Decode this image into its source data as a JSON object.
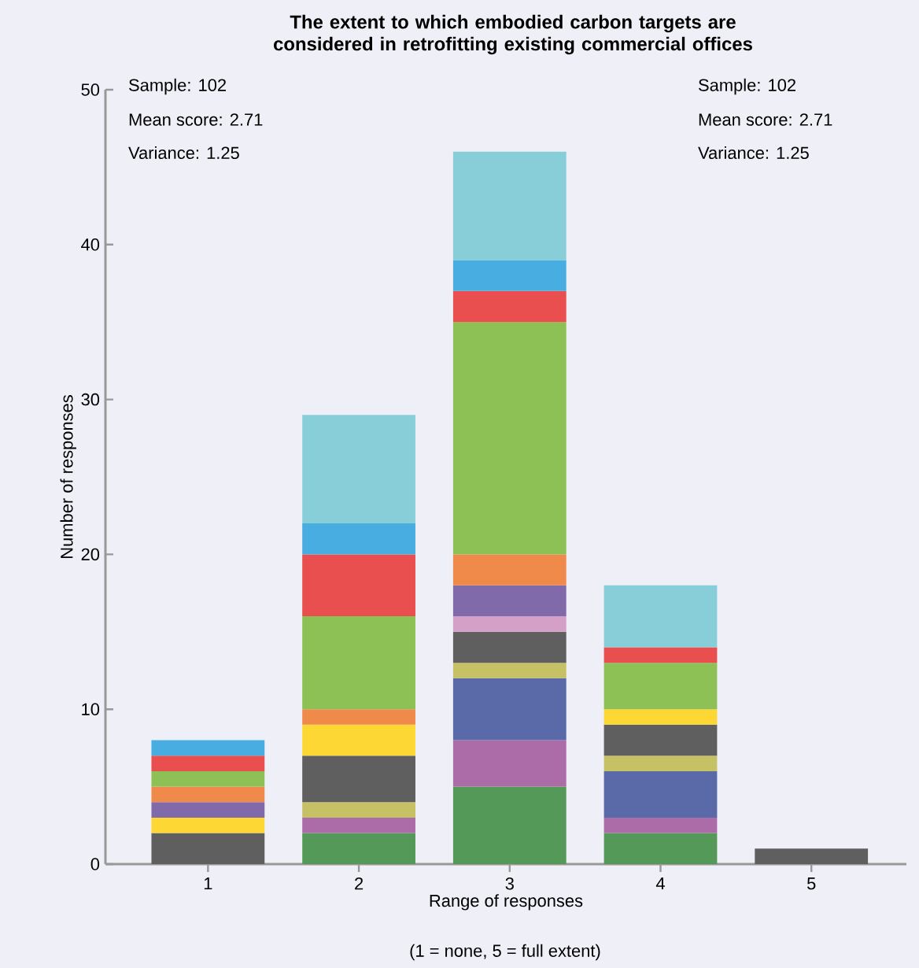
{
  "chart_data": {
    "type": "bar",
    "stacked": true,
    "title": "The extent to which embodied carbon targets are considered in retrofitting existing commercial offices",
    "xlabel": "Range of responses",
    "ylabel": "Number of responses",
    "categories": [
      "1",
      "2",
      "3",
      "4",
      "5"
    ],
    "series": [
      {
        "color": "#559959",
        "values": [
          null,
          2,
          5,
          2,
          null
        ]
      },
      {
        "color": "#ab6ca8",
        "values": [
          null,
          1,
          3,
          1,
          null
        ]
      },
      {
        "color": "#5a6aa8",
        "values": [
          null,
          null,
          4,
          3,
          null
        ]
      },
      {
        "color": "#c6c165",
        "values": [
          null,
          1,
          1,
          1,
          null
        ]
      },
      {
        "color": "#5f5f5f",
        "values": [
          2,
          3,
          2,
          2,
          1
        ]
      },
      {
        "color": "#d4a0c8",
        "values": [
          null,
          null,
          1,
          null,
          null
        ]
      },
      {
        "color": "#fdd835",
        "values": [
          1,
          2,
          null,
          1,
          null
        ]
      },
      {
        "color": "#806aaa",
        "values": [
          1,
          null,
          2,
          null,
          null
        ]
      },
      {
        "color": "#ef8a4a",
        "values": [
          1,
          1,
          2,
          null,
          null
        ]
      },
      {
        "color": "#8dc155",
        "values": [
          1,
          6,
          15,
          3,
          null
        ]
      },
      {
        "color": "#e84f4e",
        "values": [
          1,
          4,
          2,
          1,
          null
        ]
      },
      {
        "color": "#48ade0",
        "values": [
          1,
          2,
          2,
          null,
          null
        ]
      },
      {
        "color": "#88ced9",
        "values": [
          null,
          7,
          7,
          4,
          null
        ]
      }
    ],
    "ylim": [
      0,
      50
    ],
    "yticks": [
      0,
      10,
      20,
      30,
      40,
      50
    ],
    "annotations": [
      "Sample: 102",
      "Mean score: 2.71",
      "Variance: 1.25",
      "Sample: 102",
      "Mean score: 2.71",
      "Variance: 1.25",
      "(1 = none, 5 = full extent)"
    ]
  }
}
